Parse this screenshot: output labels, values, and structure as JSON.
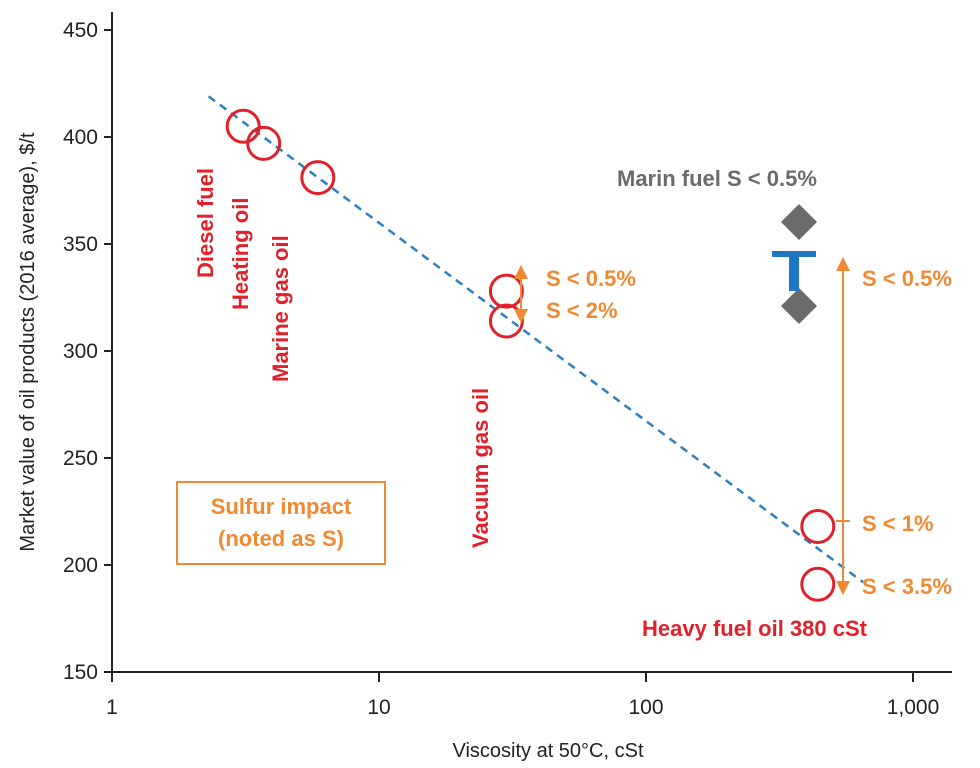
{
  "chart_data": {
    "type": "scatter",
    "xlabel": "Viscosity at 50°C, cSt",
    "ylabel": "Market value of oil products (2016 average), $/t",
    "x_scale": "log",
    "xlim": [
      1,
      2000
    ],
    "ylim": [
      150,
      455
    ],
    "x_ticks": [
      1,
      10,
      100,
      1000
    ],
    "x_tick_labels": [
      "1",
      "10",
      "100",
      "1,000"
    ],
    "y_ticks": [
      150,
      200,
      250,
      300,
      350,
      400,
      450
    ],
    "y_tick_labels": [
      "150",
      "200",
      "250",
      "300",
      "350",
      "400",
      "450"
    ],
    "grid": false,
    "colors": {
      "points": "#e0202a",
      "trend": "#2e7fc1",
      "sulfur": "#ef8a33",
      "marine": "#6b6b6b",
      "marine_bar": "#1f77c4"
    },
    "points": [
      {
        "label": "Diesel fuel",
        "x": 3.1,
        "y": 405
      },
      {
        "label": "Heating oil",
        "x": 3.7,
        "y": 397
      },
      {
        "label": "Marine gas oil",
        "x": 5.9,
        "y": 381
      },
      {
        "label": "Vacuum gas oil",
        "x": 30,
        "y": 328
      },
      {
        "label": "",
        "x": 30,
        "y": 314
      },
      {
        "label": "Heavy fuel oil 380 cSt",
        "x": 440,
        "y": 218
      },
      {
        "label": "",
        "x": 440,
        "y": 191
      }
    ],
    "trendline": {
      "style": "dashed",
      "x": [
        2.3,
        650
      ],
      "y": [
        419,
        192
      ]
    },
    "sulfur_annotations": [
      {
        "label": "S < 0.5%",
        "y": 327
      },
      {
        "label": "S < 2%",
        "y": 314
      },
      {
        "label": "S < 0.5%",
        "y": 327
      },
      {
        "label": "S < 1%",
        "y": 218
      },
      {
        "label": "S < 3.5%",
        "y": 191
      }
    ],
    "marine_fuel": {
      "title": "Marin fuel S < 0.5%",
      "x": 430,
      "high": 343,
      "low": 315,
      "mid_low": 322,
      "mid_high": 340
    },
    "legend_box": {
      "line1": "Sulfur impact",
      "line2": "(noted as S)"
    }
  }
}
